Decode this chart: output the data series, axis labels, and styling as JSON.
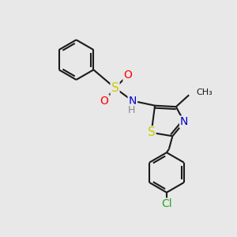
{
  "background_color": "#e8e8e8",
  "bond_color": "#1a1a1a",
  "bond_width": 1.5,
  "colors": {
    "S": "#cccc00",
    "N": "#0000cc",
    "O": "#ff0000",
    "Cl": "#22aa22",
    "H": "#888888",
    "C": "#1a1a1a"
  },
  "fig_size": [
    3.0,
    3.0
  ],
  "dpi": 100
}
